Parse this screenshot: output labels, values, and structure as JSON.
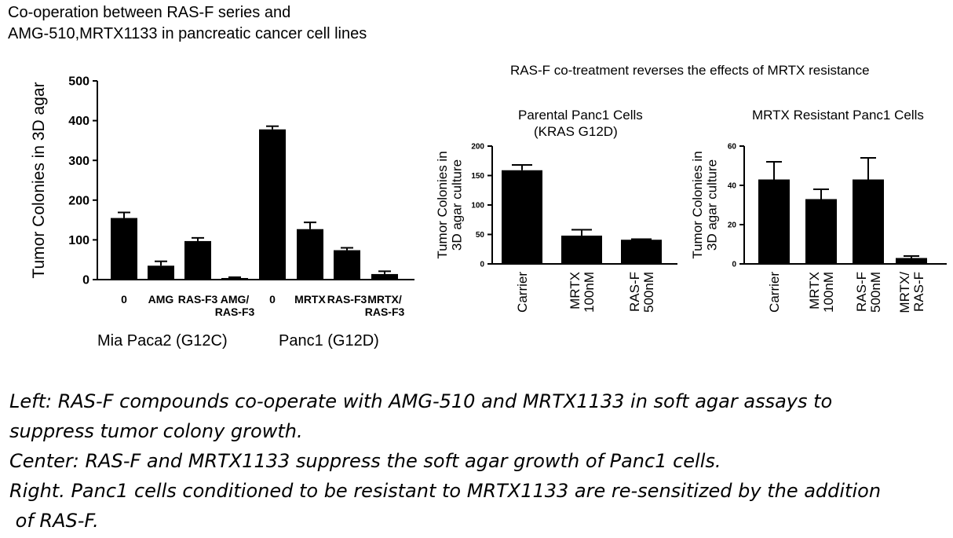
{
  "header": {
    "title_line1": "Co-operation between RAS-F series and",
    "title_line2": "AMG-510,MRTX1133 in pancreatic cancer cell lines"
  },
  "right_header": "RAS-F co-treatment reverses the effects of MRTX resistance",
  "left_panel": {
    "group_labels": [
      "Mia Paca2 (G12C)",
      "Panc1 (G12D)"
    ]
  },
  "middle_panel": {
    "subtitle_line1": "Parental Panc1 Cells",
    "subtitle_line2": "(KRAS G12D)"
  },
  "right_panel": {
    "subtitle": "MRTX Resistant Panc1 Cells"
  },
  "captions": [
    "Left: RAS-F compounds co-operate with AMG-510 and MRTX1133 in soft agar assays to",
    "suppress tumor colony growth.",
    "Center: RAS-F and MRTX1133 suppress the soft agar growth  of  Panc1 cells.",
    "Right. Panc1 cells conditioned to be resistant to MRTX1133 are re-sensitized by the addition",
    " of RAS-F."
  ],
  "chart_data": [
    {
      "type": "bar",
      "ylabel": "Tumor Colonies in 3D agar",
      "ylim": [
        0,
        500
      ],
      "yticks": [
        0,
        100,
        200,
        300,
        400,
        500
      ],
      "categories": [
        "0",
        "AMG",
        "RAS-F3",
        "AMG/\nRAS-F3",
        "0",
        "MRTX",
        "RAS-F3",
        "MRTX/\nRAS-F3"
      ],
      "values": [
        155,
        35,
        97,
        4,
        378,
        127,
        74,
        14
      ],
      "errors": [
        14,
        11,
        8,
        2,
        8,
        17,
        6,
        7
      ],
      "groups": [
        "Mia Paca2 (G12C)",
        "Panc1 (G12D)"
      ],
      "bar_color": "#000000"
    },
    {
      "type": "bar",
      "title": "Parental Panc1 Cells (KRAS G12D)",
      "ylabel": "Tumor Colonies in\n3D agar culture",
      "ylim": [
        0,
        200
      ],
      "yticks": [
        0,
        50,
        100,
        150,
        200
      ],
      "categories": [
        "Carrier",
        "MRTX\n100nM",
        "RAS-F\n500nM"
      ],
      "values": [
        159,
        48,
        41
      ],
      "errors": [
        9,
        10,
        1
      ],
      "bar_color": "#000000"
    },
    {
      "type": "bar",
      "title": "MRTX Resistant Panc1 Cells",
      "ylabel": "Tumor Colonies in\n3D agar culture",
      "ylim": [
        0,
        60
      ],
      "yticks": [
        0,
        20,
        40,
        60
      ],
      "categories": [
        "Carrier",
        "MRTX\n100nM",
        "RAS-F\n500nM",
        "MRTX/\nRAS-F"
      ],
      "values": [
        43,
        33,
        43,
        3
      ],
      "errors": [
        9,
        5,
        11,
        1
      ],
      "bar_color": "#000000"
    }
  ]
}
